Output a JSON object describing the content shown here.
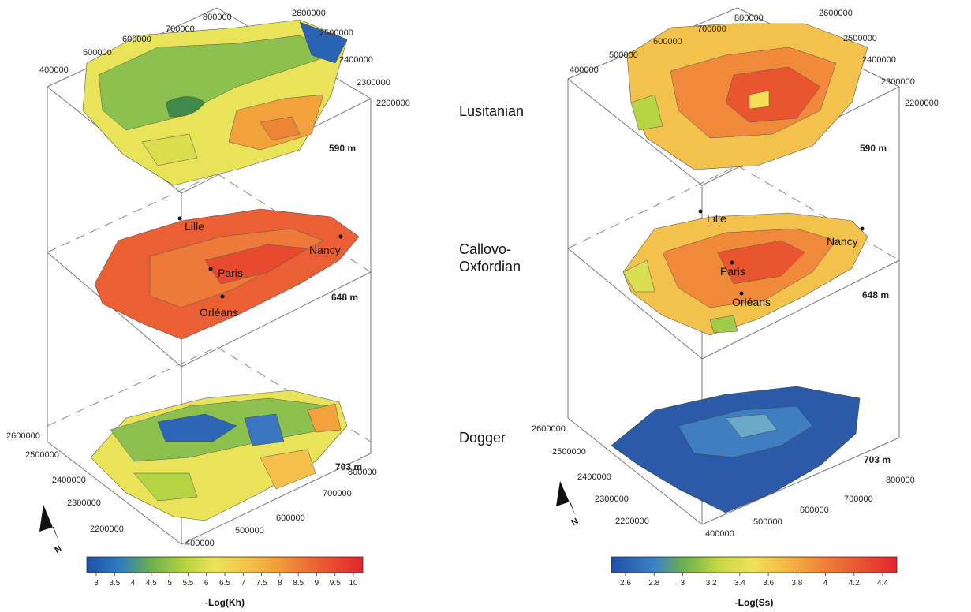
{
  "layers": [
    {
      "name": "Lusitanian",
      "depth": "590 m"
    },
    {
      "name": "Callovo-\nOxfordian",
      "name_line1": "Callovo-",
      "name_line2": "Oxfordian",
      "depth": "648 m"
    },
    {
      "name": "Dogger",
      "depth": "703 m"
    }
  ],
  "cities": [
    "Lille",
    "Nancy",
    "Paris",
    "Orléans"
  ],
  "left_panel": {
    "colorbar": {
      "title": "-Log(Kh)",
      "ticks": [
        "3",
        "3.5",
        "4",
        "4.5",
        "5",
        "5.5",
        "6",
        "6.5",
        "7",
        "7.5",
        "8",
        "8.5",
        "9",
        "9.5",
        "10"
      ]
    },
    "x_ticks": [
      "400000",
      "500000",
      "600000",
      "700000",
      "800000"
    ],
    "y_ticks": [
      "2200000",
      "2300000",
      "2400000",
      "2500000",
      "2600000"
    ]
  },
  "right_panel": {
    "colorbar": {
      "title": "-Log(Ss)",
      "ticks": [
        "2.6",
        "2.8",
        "3",
        "3.2",
        "3.4",
        "3.6",
        "3.8",
        "4",
        "4.2",
        "4.4"
      ]
    },
    "x_ticks": [
      "400000",
      "500000",
      "600000",
      "700000",
      "800000"
    ],
    "y_ticks": [
      "2200000",
      "2300000",
      "2400000",
      "2500000",
      "2600000"
    ]
  },
  "north_label": "N",
  "colors": {
    "blue": "#2a5aa8",
    "green": "#7bb84a",
    "yellow": "#e9e35a",
    "orange": "#f2a23b",
    "red": "#e8452e"
  }
}
